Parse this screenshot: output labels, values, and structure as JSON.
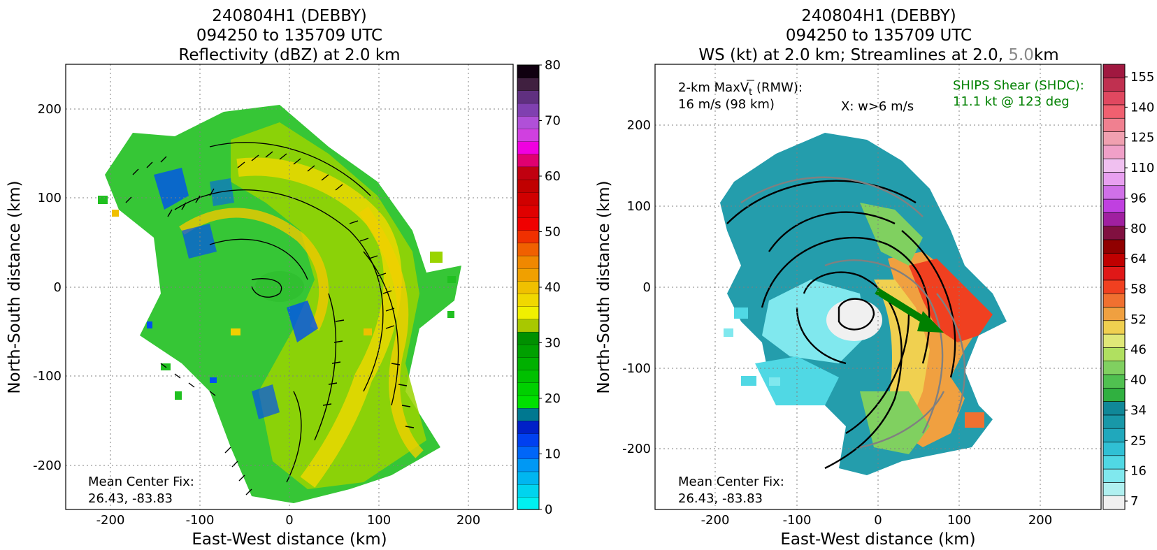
{
  "chart_data": [
    {
      "type": "heatmap",
      "title_lines": [
        "240804H1 (DEBBY)",
        "094250 to 135709 UTC",
        "Reflectivity (dBZ) at 2.0 km"
      ],
      "xlabel": "East-West distance (km)",
      "ylabel": "North-South distance (km)",
      "xlim": [
        -250,
        250
      ],
      "ylim": [
        -250,
        250
      ],
      "xticks": [
        -200,
        -100,
        0,
        100,
        200
      ],
      "yticks": [
        -200,
        -100,
        0,
        100,
        200
      ],
      "grid": true,
      "annotations": {
        "center_label": "Mean Center Fix:",
        "center_value": "26.43, -83.83"
      },
      "colorbar": {
        "min": 0,
        "max": 80,
        "tick_values": [
          0,
          10,
          20,
          30,
          40,
          50,
          60,
          70,
          80
        ],
        "colors": [
          "#00f0f0",
          "#00d4ee",
          "#00b6f0",
          "#0098f4",
          "#0066f8",
          "#0040f0",
          "#0020c8",
          "#007890",
          "#00e000",
          "#00d000",
          "#00c000",
          "#00b000",
          "#00a000",
          "#009000",
          "#a8c800",
          "#f0f000",
          "#f0d800",
          "#f0c000",
          "#f0a000",
          "#f08800",
          "#f06000",
          "#f03000",
          "#f00000",
          "#e00000",
          "#d00000",
          "#c00000",
          "#c00010",
          "#e00070",
          "#f000e0",
          "#d040e0",
          "#b050d8",
          "#8040b0",
          "#603080",
          "#402040",
          "#100010"
        ]
      },
      "wind_barbs": true
    },
    {
      "type": "heatmap",
      "title_lines": [
        "240804H1 (DEBBY)",
        "094250 to 135709 UTC"
      ],
      "title_line3": {
        "prefix": "WS (kt) at 2.0 km; Streamlines at 2.0, ",
        "highlight": "5.0",
        "suffix": "km",
        "highlight_color": "#888888"
      },
      "xlabel": "East-West distance (km)",
      "ylabel": "North-South distance (km)",
      "xlim": [
        -275,
        275
      ],
      "ylim": [
        -275,
        275
      ],
      "xticks": [
        -200,
        -100,
        0,
        100,
        200
      ],
      "yticks": [
        -200,
        -100,
        0,
        100,
        200
      ],
      "grid": true,
      "annotations": {
        "maxvt_line1": "2-km MaxV",
        "maxvt_sub": "t",
        "maxvt_suffix": " (RMW):",
        "maxvt_line2": "16 m/s (98 km)",
        "updraft_note": "X: w>6 m/s",
        "shear_line1": "SHIPS Shear (SHDC):",
        "shear_line2": "11.1 kt @ 123 deg",
        "shear_color": "#008000",
        "center_label": "Mean Center Fix:",
        "center_value": "26.43, -83.83"
      },
      "shear_vector": {
        "direction_deg": 123,
        "speed_kt": 11.1
      },
      "colorbar": {
        "tick_labels": [
          "7",
          "16",
          "25",
          "34",
          "40",
          "46",
          "52",
          "58",
          "64",
          "80",
          "96",
          "110",
          "125",
          "140",
          "155"
        ],
        "colors": [
          "#f0f0f0",
          "#b0f0f0",
          "#80e8ee",
          "#50d8e4",
          "#30c0d4",
          "#20a8bc",
          "#1898a8",
          "#108898",
          "#30b040",
          "#50c050",
          "#80d060",
          "#b0e060",
          "#e0e878",
          "#f0d050",
          "#f0a040",
          "#f07030",
          "#f04020",
          "#e01818",
          "#c00000",
          "#900000",
          "#801040",
          "#a020a0",
          "#c040e0",
          "#d070e8",
          "#e8a0f0",
          "#f0c0f0",
          "#f0a0c8",
          "#f0a0b0",
          "#f08090",
          "#f06070",
          "#e04860",
          "#c03050",
          "#a01840"
        ]
      }
    }
  ]
}
